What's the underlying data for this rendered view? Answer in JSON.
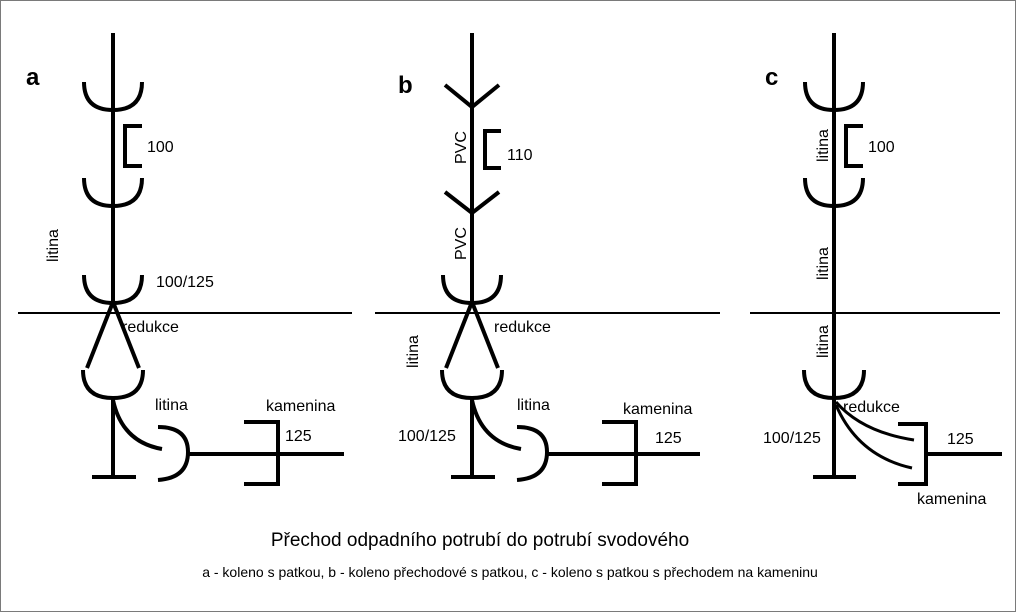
{
  "colors": {
    "stroke": "#000000",
    "background": "#ffffff",
    "frame": "#7a7a7a"
  },
  "panels": {
    "a": {
      "letter": "a",
      "material_vertical": "litina",
      "dim_top": "100",
      "dim_mid": "100/125",
      "reduction": "redukce",
      "material_elbow": "litina",
      "stoneware": "kamenina",
      "dim_stoneware": "125"
    },
    "b": {
      "letter": "b",
      "pvc_top": "PVC",
      "pvc_bottom": "PVC",
      "dim_top": "110",
      "reduction": "redukce",
      "material_vertical": "litina",
      "dim_bottom": "100/125",
      "material_elbow": "litina",
      "stoneware": "kamenina",
      "dim_stoneware": "125"
    },
    "c": {
      "letter": "c",
      "material_top": "litina",
      "material_mid": "litina",
      "material_low": "litina",
      "dim_top": "100",
      "reduction": "redukce",
      "dim_bottom": "100/125",
      "dim_stoneware": "125",
      "stoneware": "kamenina"
    }
  },
  "caption": {
    "title": "Přechod odpadního potrubí do potrubí svodového",
    "legend": "a - koleno s patkou, b - koleno přechodové s patkou, c - koleno s patkou  s přechodem na kameninu"
  }
}
